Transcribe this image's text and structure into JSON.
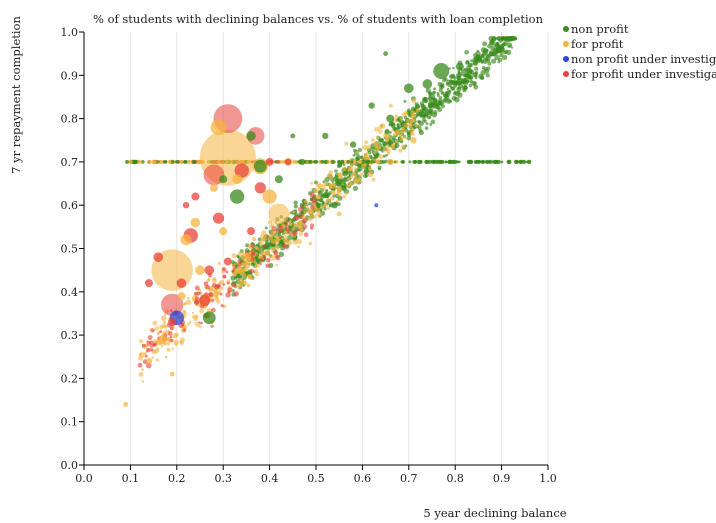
{
  "chart_data": {
    "type": "scatter",
    "title": "% of students with declining balances vs. % of students with loan completion",
    "xlabel": "5 year declining balance",
    "ylabel": "7 yr repayment completion",
    "xlim": [
      0,
      1
    ],
    "ylim": [
      0,
      1
    ],
    "xticks": [
      "0.0",
      "0.1",
      "0.2",
      "0.3",
      "0.4",
      "0.5",
      "0.6",
      "0.7",
      "0.8",
      "0.9",
      "1.0"
    ],
    "yticks": [
      "0.0",
      "0.1",
      "0.2",
      "0.3",
      "0.4",
      "0.5",
      "0.6",
      "0.7",
      "0.8",
      "0.9",
      "1.0"
    ],
    "grid": "vertical",
    "legend_position": "right",
    "series": [
      {
        "name": "non profit",
        "color": "#3a8a1c",
        "points": [
          [
            0.77,
            0.91,
            1.0
          ],
          [
            0.74,
            0.88,
            0.6
          ],
          [
            0.81,
            0.92,
            0.5
          ],
          [
            0.7,
            0.87,
            0.6
          ],
          [
            0.33,
            0.62,
            0.9
          ],
          [
            0.27,
            0.34,
            0.8
          ],
          [
            0.36,
            0.76,
            0.6
          ],
          [
            0.38,
            0.69,
            0.8
          ],
          [
            0.3,
            0.66,
            0.5
          ],
          [
            0.54,
            0.6,
            0.4
          ],
          [
            0.42,
            0.66,
            0.5
          ],
          [
            0.66,
            0.8,
            0.5
          ],
          [
            0.58,
            0.74,
            0.4
          ],
          [
            0.62,
            0.83,
            0.4
          ],
          [
            0.47,
            0.7,
            0.4
          ],
          [
            0.52,
            0.76,
            0.4
          ],
          [
            0.85,
            0.94,
            0.4
          ],
          [
            0.9,
            0.96,
            0.4
          ],
          [
            0.65,
            0.95,
            0.3
          ],
          [
            0.45,
            0.76,
            0.3
          ]
        ]
      },
      {
        "name": "for profit",
        "color": "#f5b440",
        "points": [
          [
            0.31,
            0.71,
            3.5
          ],
          [
            0.19,
            0.45,
            2.6
          ],
          [
            0.29,
            0.78,
            1.0
          ],
          [
            0.42,
            0.58,
            1.3
          ],
          [
            0.38,
            0.69,
            1.0
          ],
          [
            0.4,
            0.62,
            0.9
          ],
          [
            0.26,
            0.38,
            0.7
          ],
          [
            0.22,
            0.52,
            0.7
          ],
          [
            0.14,
            0.24,
            0.4
          ],
          [
            0.17,
            0.29,
            0.5
          ],
          [
            0.24,
            0.56,
            0.6
          ],
          [
            0.33,
            0.66,
            0.6
          ],
          [
            0.35,
            0.48,
            0.6
          ],
          [
            0.28,
            0.64,
            0.5
          ],
          [
            0.44,
            0.7,
            0.5
          ],
          [
            0.25,
            0.45,
            0.6
          ],
          [
            0.19,
            0.21,
            0.3
          ],
          [
            0.09,
            0.14,
            0.3
          ],
          [
            0.66,
            0.7,
            0.4
          ],
          [
            0.71,
            0.75,
            0.4
          ],
          [
            0.21,
            0.39,
            0.5
          ],
          [
            0.3,
            0.54,
            0.5
          ]
        ]
      },
      {
        "name": "non profit under investigation",
        "color": "#2b46d8",
        "points": [
          [
            0.2,
            0.34,
            0.9
          ],
          [
            0.63,
            0.6,
            0.2
          ]
        ]
      },
      {
        "name": "for profit under investigation",
        "color": "#e8413a",
        "points": [
          [
            0.31,
            0.8,
            1.8
          ],
          [
            0.37,
            0.76,
            1.1
          ],
          [
            0.28,
            0.67,
            1.3
          ],
          [
            0.19,
            0.37,
            1.4
          ],
          [
            0.34,
            0.68,
            0.9
          ],
          [
            0.23,
            0.53,
            0.9
          ],
          [
            0.38,
            0.64,
            0.7
          ],
          [
            0.26,
            0.38,
            0.7
          ],
          [
            0.29,
            0.57,
            0.7
          ],
          [
            0.16,
            0.48,
            0.6
          ],
          [
            0.21,
            0.42,
            0.6
          ],
          [
            0.14,
            0.42,
            0.5
          ],
          [
            0.36,
            0.54,
            0.5
          ],
          [
            0.31,
            0.47,
            0.5
          ],
          [
            0.4,
            0.7,
            0.5
          ],
          [
            0.44,
            0.7,
            0.4
          ],
          [
            0.24,
            0.62,
            0.5
          ],
          [
            0.27,
            0.45,
            0.6
          ],
          [
            0.22,
            0.6,
            0.4
          ],
          [
            0.19,
            0.33,
            0.5
          ]
        ]
      }
    ],
    "horizontal_band": {
      "y": 0.7,
      "x_range": [
        0.09,
        0.96
      ]
    }
  }
}
